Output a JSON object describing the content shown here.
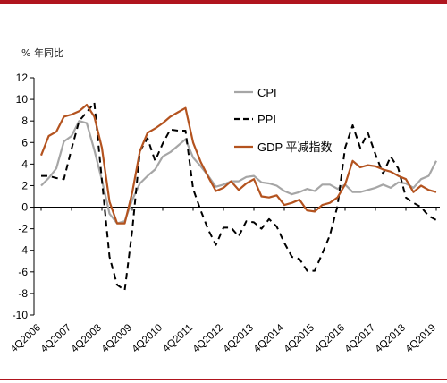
{
  "page": {
    "colors": {
      "top_rule": "#b0151e",
      "bottom_rule": "#b0151e"
    }
  },
  "chart_data": {
    "type": "line",
    "unit_label": "% 年同比",
    "ylim": [
      -10,
      12
    ],
    "yticks": [
      -10,
      -8,
      -6,
      -4,
      -2,
      0,
      2,
      4,
      6,
      8,
      10,
      12
    ],
    "x_tick_labels": [
      "4Q2006",
      "4Q2007",
      "4Q2008",
      "4Q2009",
      "4Q2010",
      "4Q2011",
      "4Q2012",
      "4Q2013",
      "4Q2014",
      "4Q2015",
      "4Q2016",
      "4Q2017",
      "4Q2018",
      "4Q2019"
    ],
    "x": [
      "4Q2006",
      "1Q2007",
      "2Q2007",
      "3Q2007",
      "4Q2007",
      "1Q2008",
      "2Q2008",
      "3Q2008",
      "4Q2008",
      "1Q2009",
      "2Q2009",
      "3Q2009",
      "4Q2009",
      "1Q2010",
      "2Q2010",
      "3Q2010",
      "4Q2010",
      "1Q2011",
      "2Q2011",
      "3Q2011",
      "4Q2011",
      "1Q2012",
      "2Q2012",
      "3Q2012",
      "4Q2012",
      "1Q2013",
      "2Q2013",
      "3Q2013",
      "4Q2013",
      "1Q2014",
      "2Q2014",
      "3Q2014",
      "4Q2014",
      "1Q2015",
      "2Q2015",
      "3Q2015",
      "4Q2015",
      "1Q2016",
      "2Q2016",
      "3Q2016",
      "4Q2016",
      "1Q2017",
      "2Q2017",
      "3Q2017",
      "4Q2017",
      "1Q2018",
      "2Q2018",
      "3Q2018",
      "4Q2018",
      "1Q2019",
      "2Q2019",
      "3Q2019",
      "4Q2019"
    ],
    "grid": false,
    "legend_position": "top-center",
    "series": [
      {
        "name": "CPI",
        "color": "#a6a6a6",
        "style": "solid",
        "values": [
          2.0,
          2.7,
          3.6,
          6.1,
          6.6,
          8.0,
          7.8,
          5.3,
          2.5,
          -0.6,
          -1.5,
          -1.3,
          0.7,
          2.2,
          2.9,
          3.5,
          4.7,
          5.1,
          5.7,
          6.3,
          4.6,
          3.8,
          2.9,
          1.9,
          2.1,
          2.4,
          2.4,
          2.8,
          2.9,
          2.3,
          2.2,
          2.0,
          1.5,
          1.2,
          1.4,
          1.7,
          1.5,
          2.1,
          2.1,
          1.7,
          2.1,
          1.4,
          1.4,
          1.6,
          1.8,
          2.1,
          1.8,
          2.3,
          2.2,
          1.8,
          2.6,
          2.9,
          4.3
        ]
      },
      {
        "name": "PPI",
        "color": "#000000",
        "style": "dashed",
        "values": [
          2.9,
          2.9,
          2.7,
          2.6,
          5.4,
          8.0,
          8.8,
          9.7,
          2.5,
          -4.6,
          -7.2,
          -7.7,
          -2.1,
          5.2,
          6.4,
          4.3,
          5.9,
          7.2,
          7.1,
          7.1,
          1.7,
          -0.3,
          -2.1,
          -3.5,
          -1.9,
          -1.9,
          -2.7,
          -1.3,
          -1.4,
          -2.0,
          -1.1,
          -1.8,
          -3.3,
          -4.6,
          -4.8,
          -5.9,
          -5.9,
          -4.3,
          -2.6,
          0.1,
          5.5,
          7.6,
          5.5,
          6.9,
          4.9,
          3.1,
          4.7,
          3.6,
          0.9,
          0.4,
          0.0,
          -0.8,
          -1.2
        ]
      },
      {
        "name": "GDP 平减指数",
        "color": "#b4531f",
        "style": "solid",
        "values": [
          4.8,
          6.6,
          7.0,
          8.4,
          8.6,
          8.9,
          9.5,
          8.4,
          5.5,
          0.5,
          -1.5,
          -1.5,
          1.4,
          5.2,
          6.9,
          7.3,
          7.8,
          8.4,
          8.8,
          9.2,
          6.0,
          4.2,
          2.8,
          1.5,
          1.8,
          2.4,
          1.6,
          2.2,
          2.6,
          1.0,
          0.9,
          1.1,
          0.2,
          0.4,
          0.7,
          -0.3,
          -0.4,
          0.2,
          0.4,
          0.9,
          2.1,
          4.3,
          3.7,
          3.9,
          3.8,
          3.5,
          3.3,
          2.9,
          2.6,
          1.4,
          2.0,
          1.6,
          1.4
        ]
      }
    ]
  }
}
